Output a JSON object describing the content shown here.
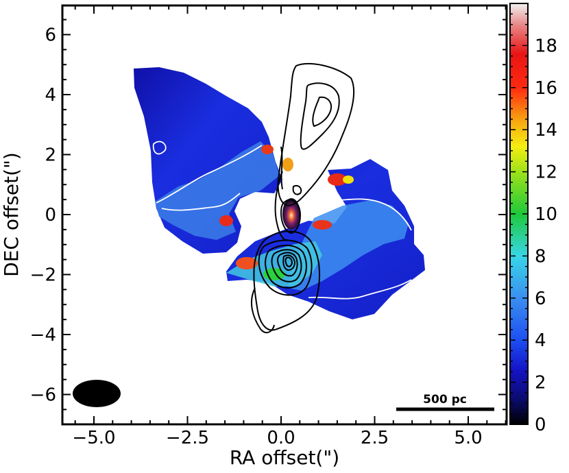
{
  "chart_data": {
    "type": "heatmap",
    "title": "",
    "xlabel": "RA offset(\")",
    "ylabel": "DEC offset(\")",
    "xlim": [
      6.6,
      -6.6
    ],
    "ylim": [
      -7.0,
      7.0
    ],
    "x_ticks": [
      {
        "value": -5.0,
        "label": "−5.0"
      },
      {
        "value": -2.5,
        "label": "−2.5"
      },
      {
        "value": 0.0,
        "label": "0.0"
      },
      {
        "value": 2.5,
        "label": "2.5"
      },
      {
        "value": 5.0,
        "label": "5.0"
      }
    ],
    "y_ticks": [
      {
        "value": 6,
        "label": "6"
      },
      {
        "value": 4,
        "label": "4"
      },
      {
        "value": 2,
        "label": "2"
      },
      {
        "value": 0,
        "label": "0"
      },
      {
        "value": -2,
        "label": "−2"
      },
      {
        "value": -4,
        "label": "−4"
      },
      {
        "value": -6,
        "label": "−6"
      }
    ],
    "colorbar": {
      "range": [
        0,
        20
      ],
      "colormap": "jet-like (black-blue-cyan-green-yellow-red-white)",
      "ticks": [
        {
          "value": 0,
          "label": "0"
        },
        {
          "value": 2,
          "label": "2"
        },
        {
          "value": 4,
          "label": "4"
        },
        {
          "value": 6,
          "label": "6"
        },
        {
          "value": 8,
          "label": "8"
        },
        {
          "value": 10,
          "label": "10"
        },
        {
          "value": 12,
          "label": "12"
        },
        {
          "value": 14,
          "label": "14"
        },
        {
          "value": 16,
          "label": "16"
        },
        {
          "value": 18,
          "label": "18"
        }
      ]
    },
    "scale_bar": {
      "label": "500 pc",
      "x_range": [
        3.3,
        6.1
      ],
      "y": -6.5
    },
    "beam": {
      "center": [
        -5.5,
        -6.0
      ],
      "major_arcsec": 1.6,
      "minor_arcsec": 0.9,
      "angle_deg": 90
    }
  },
  "colors": {
    "background_map_low": "#1a1adc",
    "contour_white": "#ffffff",
    "contour_black": "#000000"
  }
}
